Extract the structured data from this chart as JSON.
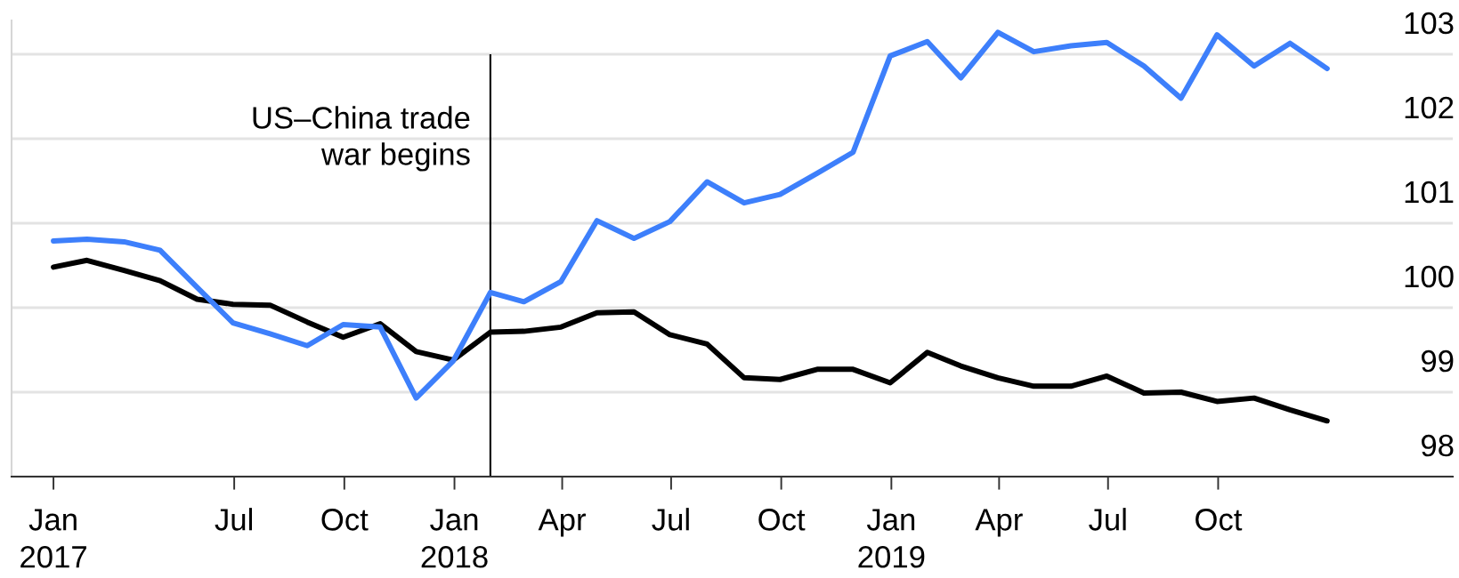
{
  "chart_data": {
    "type": "line",
    "x": [
      "2017-01-31",
      "2017-02-28",
      "2017-03-31",
      "2017-04-30",
      "2017-05-31",
      "2017-06-30",
      "2017-07-31",
      "2017-08-31",
      "2017-09-30",
      "2017-10-31",
      "2017-11-30",
      "2017-12-31",
      "2018-01-31",
      "2018-02-28",
      "2018-03-31",
      "2018-04-30",
      "2018-05-31",
      "2018-06-30",
      "2018-07-31",
      "2018-08-31",
      "2018-09-30",
      "2018-10-31",
      "2018-11-30",
      "2018-12-31",
      "2019-01-31",
      "2019-02-28",
      "2019-03-31",
      "2019-04-30",
      "2019-05-31",
      "2019-06-30",
      "2019-07-31",
      "2019-08-31",
      "2019-09-30",
      "2019-10-31",
      "2019-11-30",
      "2019-12-31"
    ],
    "series": [
      {
        "color": "#000000",
        "values": [
          100.48,
          100.56,
          100.44,
          100.32,
          100.1,
          100.04,
          100.03,
          99.83,
          99.65,
          99.81,
          99.48,
          99.38,
          99.71,
          99.72,
          99.77,
          99.94,
          99.95,
          99.68,
          99.57,
          99.17,
          99.15,
          99.27,
          99.27,
          99.11,
          99.47,
          99.31,
          99.17,
          99.07,
          99.07,
          99.19,
          98.99,
          99.0,
          98.89,
          98.93,
          98.79,
          98.66
        ]
      },
      {
        "color": "#3d7ffb",
        "values": [
          100.79,
          100.81,
          100.78,
          100.68,
          100.24,
          99.82,
          99.69,
          99.55,
          99.8,
          99.77,
          98.93,
          99.37,
          100.18,
          100.07,
          100.31,
          101.03,
          100.82,
          101.02,
          101.49,
          101.24,
          101.34,
          101.59,
          101.84,
          102.98,
          103.15,
          102.72,
          103.26,
          103.03,
          103.1,
          103.14,
          102.86,
          102.48,
          103.23,
          102.86,
          103.13,
          102.83
        ]
      }
    ],
    "xlim": [
      "2016-12-27",
      "2020-04-14"
    ],
    "xticks": [
      {
        "value": "2017-01-31",
        "label": "Jan\n2017"
      },
      {
        "value": "2017-07-01",
        "label": "Jul"
      },
      {
        "value": "2017-10-01",
        "label": "Oct"
      },
      {
        "value": "2018-01-01",
        "label": "Jan\n2018"
      },
      {
        "value": "2018-04-01",
        "label": "Apr"
      },
      {
        "value": "2018-07-01",
        "label": "Jul"
      },
      {
        "value": "2018-10-01",
        "label": "Oct"
      },
      {
        "value": "2019-01-01",
        "label": "Jan\n2019"
      },
      {
        "value": "2019-04-01",
        "label": "Apr"
      },
      {
        "value": "2019-07-01",
        "label": "Jul"
      },
      {
        "value": "2019-10-01",
        "label": "Oct"
      }
    ],
    "ylim": [
      98,
      103.4
    ],
    "yticks": [
      98,
      99,
      100,
      101,
      102,
      103
    ],
    "grid": "y",
    "ref_lines": [
      {
        "axis": "x",
        "value": "2018-01-31",
        "label": "US–China trade\nwar begins",
        "color": "#000000"
      }
    ]
  }
}
